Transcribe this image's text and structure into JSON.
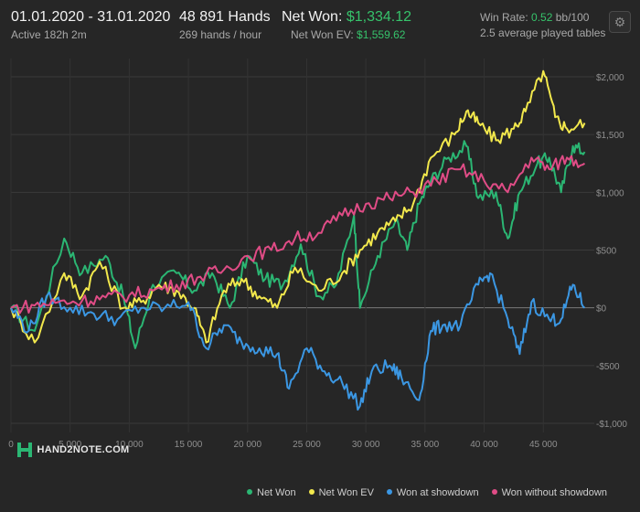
{
  "header": {
    "date_range": "01.01.2020 - 31.01.2020",
    "active": "Active 182h 2m",
    "hands": "48 891 Hands",
    "hands_per_hour": "269 hands / hour",
    "net_won_label": "Net Won:",
    "net_won_value": "$1,334.12",
    "net_won_ev_label": "Net Won  EV:",
    "net_won_ev_value": "$1,559.62",
    "win_rate_label": "Win Rate:",
    "win_rate_value": "0.52",
    "win_rate_unit": "bb/100",
    "avg_tables": "2.5 average played tables"
  },
  "logo_text": "HAND2NOTE.COM",
  "settings_icon": "gear-icon",
  "chart_data": {
    "type": "line",
    "xlim": [
      0,
      49000
    ],
    "ylim": [
      -1000,
      2000
    ],
    "x_ticks": [
      0,
      5000,
      10000,
      15000,
      20000,
      25000,
      30000,
      35000,
      40000,
      45000
    ],
    "x_tick_labels": [
      "0",
      "5 000",
      "10 000",
      "15 000",
      "20 000",
      "25 000",
      "30 000",
      "35 000",
      "40 000",
      "45 000"
    ],
    "y_ticks": [
      2000,
      1500,
      1000,
      500,
      0,
      -500,
      -1000
    ],
    "y_tick_labels": [
      "$2,000",
      "$1,500",
      "$1,000",
      "$500",
      "$0",
      "-$500",
      "-$1,000"
    ],
    "grid": true,
    "legend_position": "bottom",
    "series": [
      {
        "name": "Net Won",
        "color": "#2bb673",
        "x": [
          0,
          2000,
          4500,
          6000,
          8000,
          9500,
          10500,
          12000,
          14000,
          15500,
          17000,
          18500,
          20000,
          21500,
          23000,
          24500,
          26000,
          27500,
          29000,
          29500,
          31000,
          32500,
          33500,
          34500,
          35500,
          37000,
          38500,
          39500,
          41000,
          42000,
          43000,
          44500,
          45500,
          46500,
          47500,
          48500
        ],
        "values": [
          0,
          -200,
          600,
          300,
          450,
          100,
          -350,
          200,
          300,
          150,
          300,
          0,
          450,
          250,
          200,
          550,
          100,
          200,
          800,
          0,
          450,
          750,
          500,
          900,
          1100,
          1300,
          1400,
          950,
          1000,
          600,
          1000,
          1250,
          1300,
          1000,
          1400,
          1350
        ]
      },
      {
        "name": "Net Won  EV",
        "color": "#f2e84c",
        "x": [
          0,
          2000,
          4500,
          6000,
          7500,
          9500,
          11000,
          12500,
          14000,
          15500,
          16500,
          18000,
          19500,
          21000,
          22500,
          24000,
          26000,
          28000,
          29500,
          31000,
          32500,
          34000,
          35500,
          37500,
          38500,
          39500,
          41000,
          42500,
          43500,
          45000,
          46000,
          47000,
          48500
        ],
        "values": [
          0,
          -300,
          300,
          100,
          400,
          0,
          50,
          200,
          150,
          0,
          -300,
          150,
          250,
          100,
          0,
          350,
          150,
          300,
          500,
          650,
          750,
          900,
          1300,
          1500,
          1700,
          1600,
          1450,
          1550,
          1700,
          2050,
          1650,
          1550,
          1600
        ]
      },
      {
        "name": "Won at showdown",
        "color": "#3b97e3",
        "x": [
          0,
          1500,
          3000,
          5000,
          7000,
          9000,
          11000,
          13000,
          15000,
          16500,
          18000,
          19500,
          21000,
          22500,
          23500,
          25000,
          26500,
          28000,
          29500,
          30500,
          32000,
          33000,
          34500,
          35500,
          36500,
          38000,
          39500,
          40500,
          42000,
          43000,
          44000,
          45500,
          46500,
          47500,
          48500
        ],
        "values": [
          0,
          -200,
          100,
          0,
          -50,
          -100,
          0,
          0,
          50,
          -350,
          -150,
          -300,
          -350,
          -400,
          -700,
          -350,
          -550,
          -650,
          -850,
          -550,
          -500,
          -600,
          -800,
          -200,
          -150,
          -150,
          200,
          300,
          -100,
          -400,
          50,
          -100,
          -100,
          200,
          0
        ]
      },
      {
        "name": "Won without showdown",
        "color": "#e04c86",
        "x": [
          0,
          2000,
          4000,
          6000,
          8000,
          10000,
          12000,
          14000,
          16000,
          18000,
          20000,
          22000,
          24000,
          26000,
          28000,
          30000,
          32000,
          34000,
          36000,
          38000,
          40000,
          42000,
          44000,
          45500,
          47000,
          48500
        ],
        "values": [
          0,
          20,
          50,
          60,
          90,
          110,
          150,
          200,
          270,
          330,
          450,
          500,
          600,
          650,
          800,
          900,
          950,
          1000,
          1100,
          1200,
          1100,
          1000,
          1300,
          1200,
          1300,
          1250
        ]
      }
    ]
  }
}
